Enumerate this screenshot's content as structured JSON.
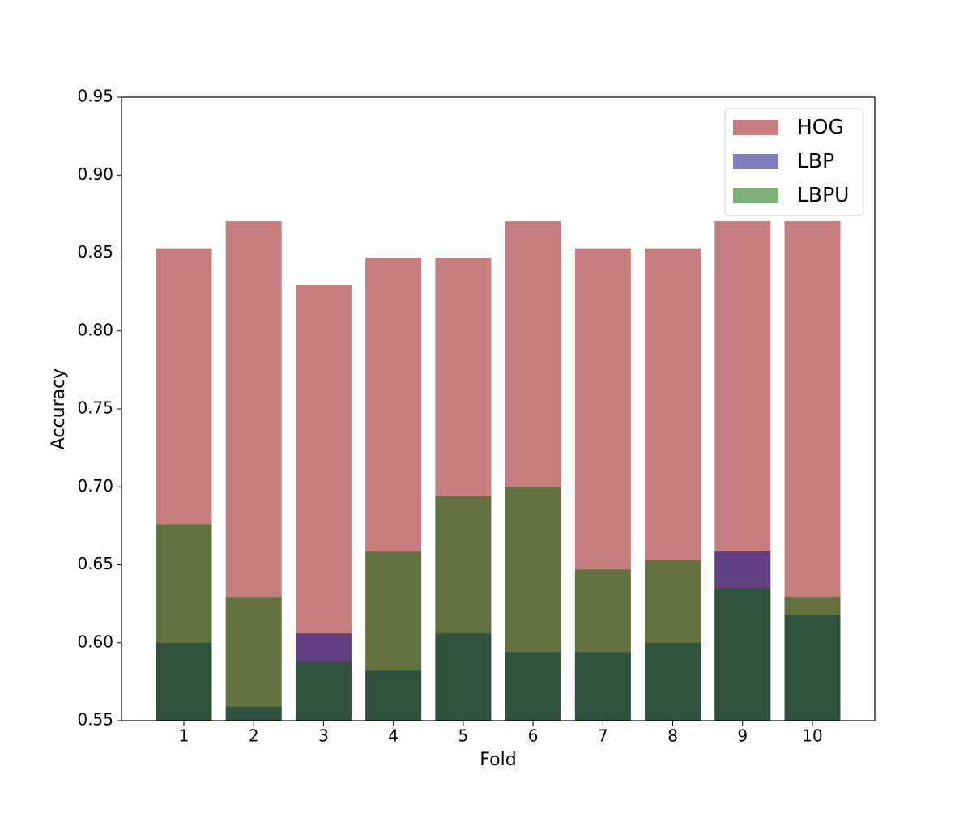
{
  "chart_data": {
    "type": "bar",
    "x_label": "Fold",
    "y_label": "Accuracy",
    "categories": [
      "1",
      "2",
      "3",
      "4",
      "5",
      "6",
      "7",
      "8",
      "9",
      "10"
    ],
    "series": [
      {
        "name": "HOG",
        "color": "#8b0000",
        "values": [
          0.853,
          0.8705,
          0.8295,
          0.847,
          0.847,
          0.8705,
          0.853,
          0.853,
          0.8705,
          0.8705
        ]
      },
      {
        "name": "LBP",
        "color": "#000080",
        "values": [
          0.6,
          0.559,
          0.606,
          0.582,
          0.606,
          0.594,
          0.594,
          0.6,
          0.6586,
          0.6175
        ]
      },
      {
        "name": "LBPU",
        "color": "#006400",
        "values": [
          0.676,
          0.6295,
          0.588,
          0.6586,
          0.694,
          0.7,
          0.647,
          0.653,
          0.635,
          0.6295
        ]
      }
    ],
    "opacity": 0.5,
    "ylim": [
      0.55,
      0.95
    ],
    "yticks": [
      0.55,
      {
        "value": 0.6,
        "label": "0.60"
      },
      0.65,
      {
        "value": 0.7,
        "label": "0.70"
      },
      0.75,
      {
        "value": 0.8,
        "label": "0.80"
      },
      0.85,
      {
        "value": 0.9,
        "label": "0.90"
      },
      0.95
    ],
    "legend": "upper right"
  }
}
